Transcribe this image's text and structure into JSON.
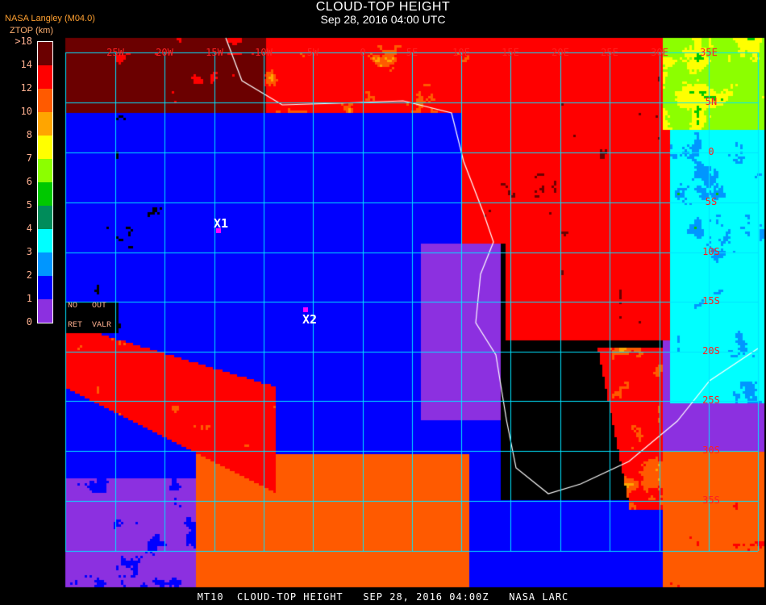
{
  "header": {
    "title": "CLOUD-TOP HEIGHT",
    "subtitle": "Sep 28, 2016 04:00 UTC",
    "org": "NASA Langley (M04.0)",
    "unit": "ZTOP (km)"
  },
  "legend": {
    "colors": [
      "#6b0000",
      "#ff0000",
      "#ff5a00",
      "#ffa500",
      "#ffff00",
      "#8cff00",
      "#00c800",
      "#008c5a",
      "#00ffff",
      "#0096ff",
      "#0000ff",
      "#8c30e0"
    ],
    "labels": [
      ">18",
      "14",
      "12",
      "10",
      "8",
      "7",
      "6",
      "5",
      "4",
      "3",
      "2",
      "1",
      "0"
    ],
    "no_data_labels": [
      "NO",
      "OUT",
      "RET",
      "VALR"
    ]
  },
  "map": {
    "longitude_labels": [
      "25W",
      "20W",
      "15W",
      "10W",
      "5W",
      "0",
      "5E",
      "10E",
      "15E",
      "20E",
      "25E",
      "30E",
      "35E"
    ],
    "latitude_labels": [
      "5N",
      "0",
      "5S",
      "10S",
      "15S",
      "20S",
      "25S",
      "30S",
      "35S"
    ],
    "grid_color": "#00e5ff",
    "coastline_color": "#ffffff",
    "markers": [
      {
        "label": "X1",
        "color": "#ff00ff"
      },
      {
        "label": "X2",
        "color": "#ff00ff"
      }
    ]
  },
  "footer": {
    "text": "MT10  CLOUD-TOP HEIGHT   SEP 28, 2016 04:00Z   NASA LARC"
  }
}
